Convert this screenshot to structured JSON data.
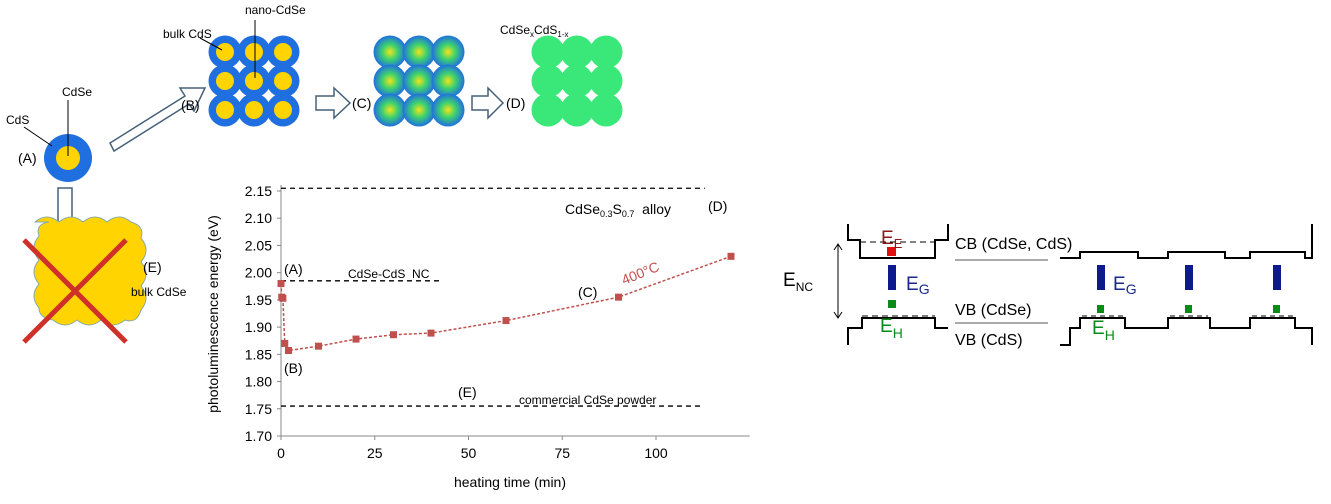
{
  "chart_data": {
    "type": "line",
    "x_label": "heating time (min)",
    "y_label": "photoluminescence energy (eV)",
    "x": [
      0,
      0.2,
      0.5,
      1,
      2,
      10,
      20,
      30,
      40,
      60,
      90,
      120
    ],
    "values": [
      1.98,
      1.955,
      1.953,
      1.87,
      1.857,
      1.865,
      1.878,
      1.886,
      1.889,
      1.912,
      1.955,
      2.03
    ],
    "color": "#c0504d",
    "xlim": [
      0,
      125
    ],
    "xticks": [
      0,
      25,
      50,
      75,
      100
    ],
    "ylim": [
      1.7,
      2.15
    ],
    "yticks": [
      {
        "value": 1.7,
        "label": "1.70"
      },
      {
        "value": 1.75,
        "label": "1.75"
      },
      {
        "value": 1.8,
        "label": "1.80"
      },
      {
        "value": 1.85,
        "label": "1.85"
      },
      {
        "value": 1.9,
        "label": "1.90"
      },
      {
        "value": 1.95,
        "label": "1.95"
      },
      {
        "value": 2.0,
        "label": "2.00"
      },
      {
        "value": 2.05,
        "label": "2.05"
      },
      {
        "value": 2.1,
        "label": "2.10"
      },
      {
        "value": 2.15,
        "label": "2.15"
      }
    ],
    "reference_lines": [
      {
        "value": 2.155,
        "xrange": [
          0,
          113
        ]
      },
      {
        "value": 1.985,
        "xrange": [
          0,
          43
        ]
      },
      {
        "value": 1.755,
        "xrange": [
          0,
          112
        ]
      }
    ],
    "annotations": [
      "(A)",
      "CdSe-CdS  NC",
      "(B)",
      "(C)",
      "400°C",
      "(D)",
      "(E)",
      "commercial CdSe powder"
    ],
    "alloy_label": [
      "CdSe",
      "0.3",
      "S",
      "0.7",
      "  alloy"
    ]
  },
  "diagram": {
    "cds": "CdS",
    "cdse": "CdSe",
    "a": "(A)",
    "bulk_cds": "bulk CdS",
    "nano_cdse": "nano-CdSe",
    "b": "(B)",
    "c": "(C)",
    "d": "(D)",
    "alloy": [
      "CdSe",
      "x",
      "CdS",
      "1-x"
    ],
    "e": "(E)",
    "bulk_cdse": "bulk CdSe"
  },
  "band": {
    "ee": [
      "E",
      "E"
    ],
    "cb": "CB (CdSe, CdS)",
    "enc": [
      "E",
      "NC"
    ],
    "eg": [
      "E",
      "G"
    ],
    "vb_cdse": "VB (CdSe)",
    "eh": [
      "E",
      "H"
    ],
    "vb_cds": "VB (CdS)",
    "eg2": [
      "E",
      "G"
    ],
    "eh2": [
      "E",
      "H"
    ]
  }
}
